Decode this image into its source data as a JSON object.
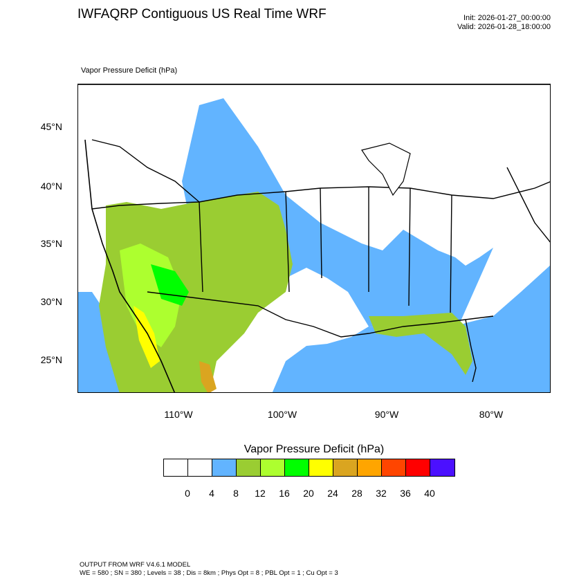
{
  "title": "IWFAQRP Contiguous US Real Time WRF",
  "init": "Init: 2026-01-27_00:00:00",
  "valid": "Valid: 2026-01-28_18:00:00",
  "field_label": "Vapor Pressure Deficit   (hPa)",
  "lat_labels": [
    "45°N",
    "40°N",
    "35°N",
    "30°N",
    "25°N"
  ],
  "lon_labels": [
    "110°W",
    "100°W",
    "90°W",
    "80°W"
  ],
  "legend": {
    "title": "Vapor Pressure Deficit  (hPa)",
    "colors": [
      "#ffffff",
      "#ffffff",
      "#62b4ff",
      "#9acd32",
      "#adff2f",
      "#00ff00",
      "#ffff00",
      "#daa520",
      "#ffa500",
      "#ff4500",
      "#ff0000",
      "#4b10ff"
    ],
    "ticks": [
      "0",
      "4",
      "8",
      "12",
      "16",
      "20",
      "24",
      "28",
      "32",
      "36",
      "40"
    ]
  },
  "footer": {
    "line1": "OUTPUT FROM WRF V4.6.1 MODEL",
    "line2": "WE = 580 ; SN = 380 ; Levels = 38 ; Dis = 8km ; Phys Opt = 8 ; PBL Opt = 1 ; Cu Opt = 3"
  }
}
